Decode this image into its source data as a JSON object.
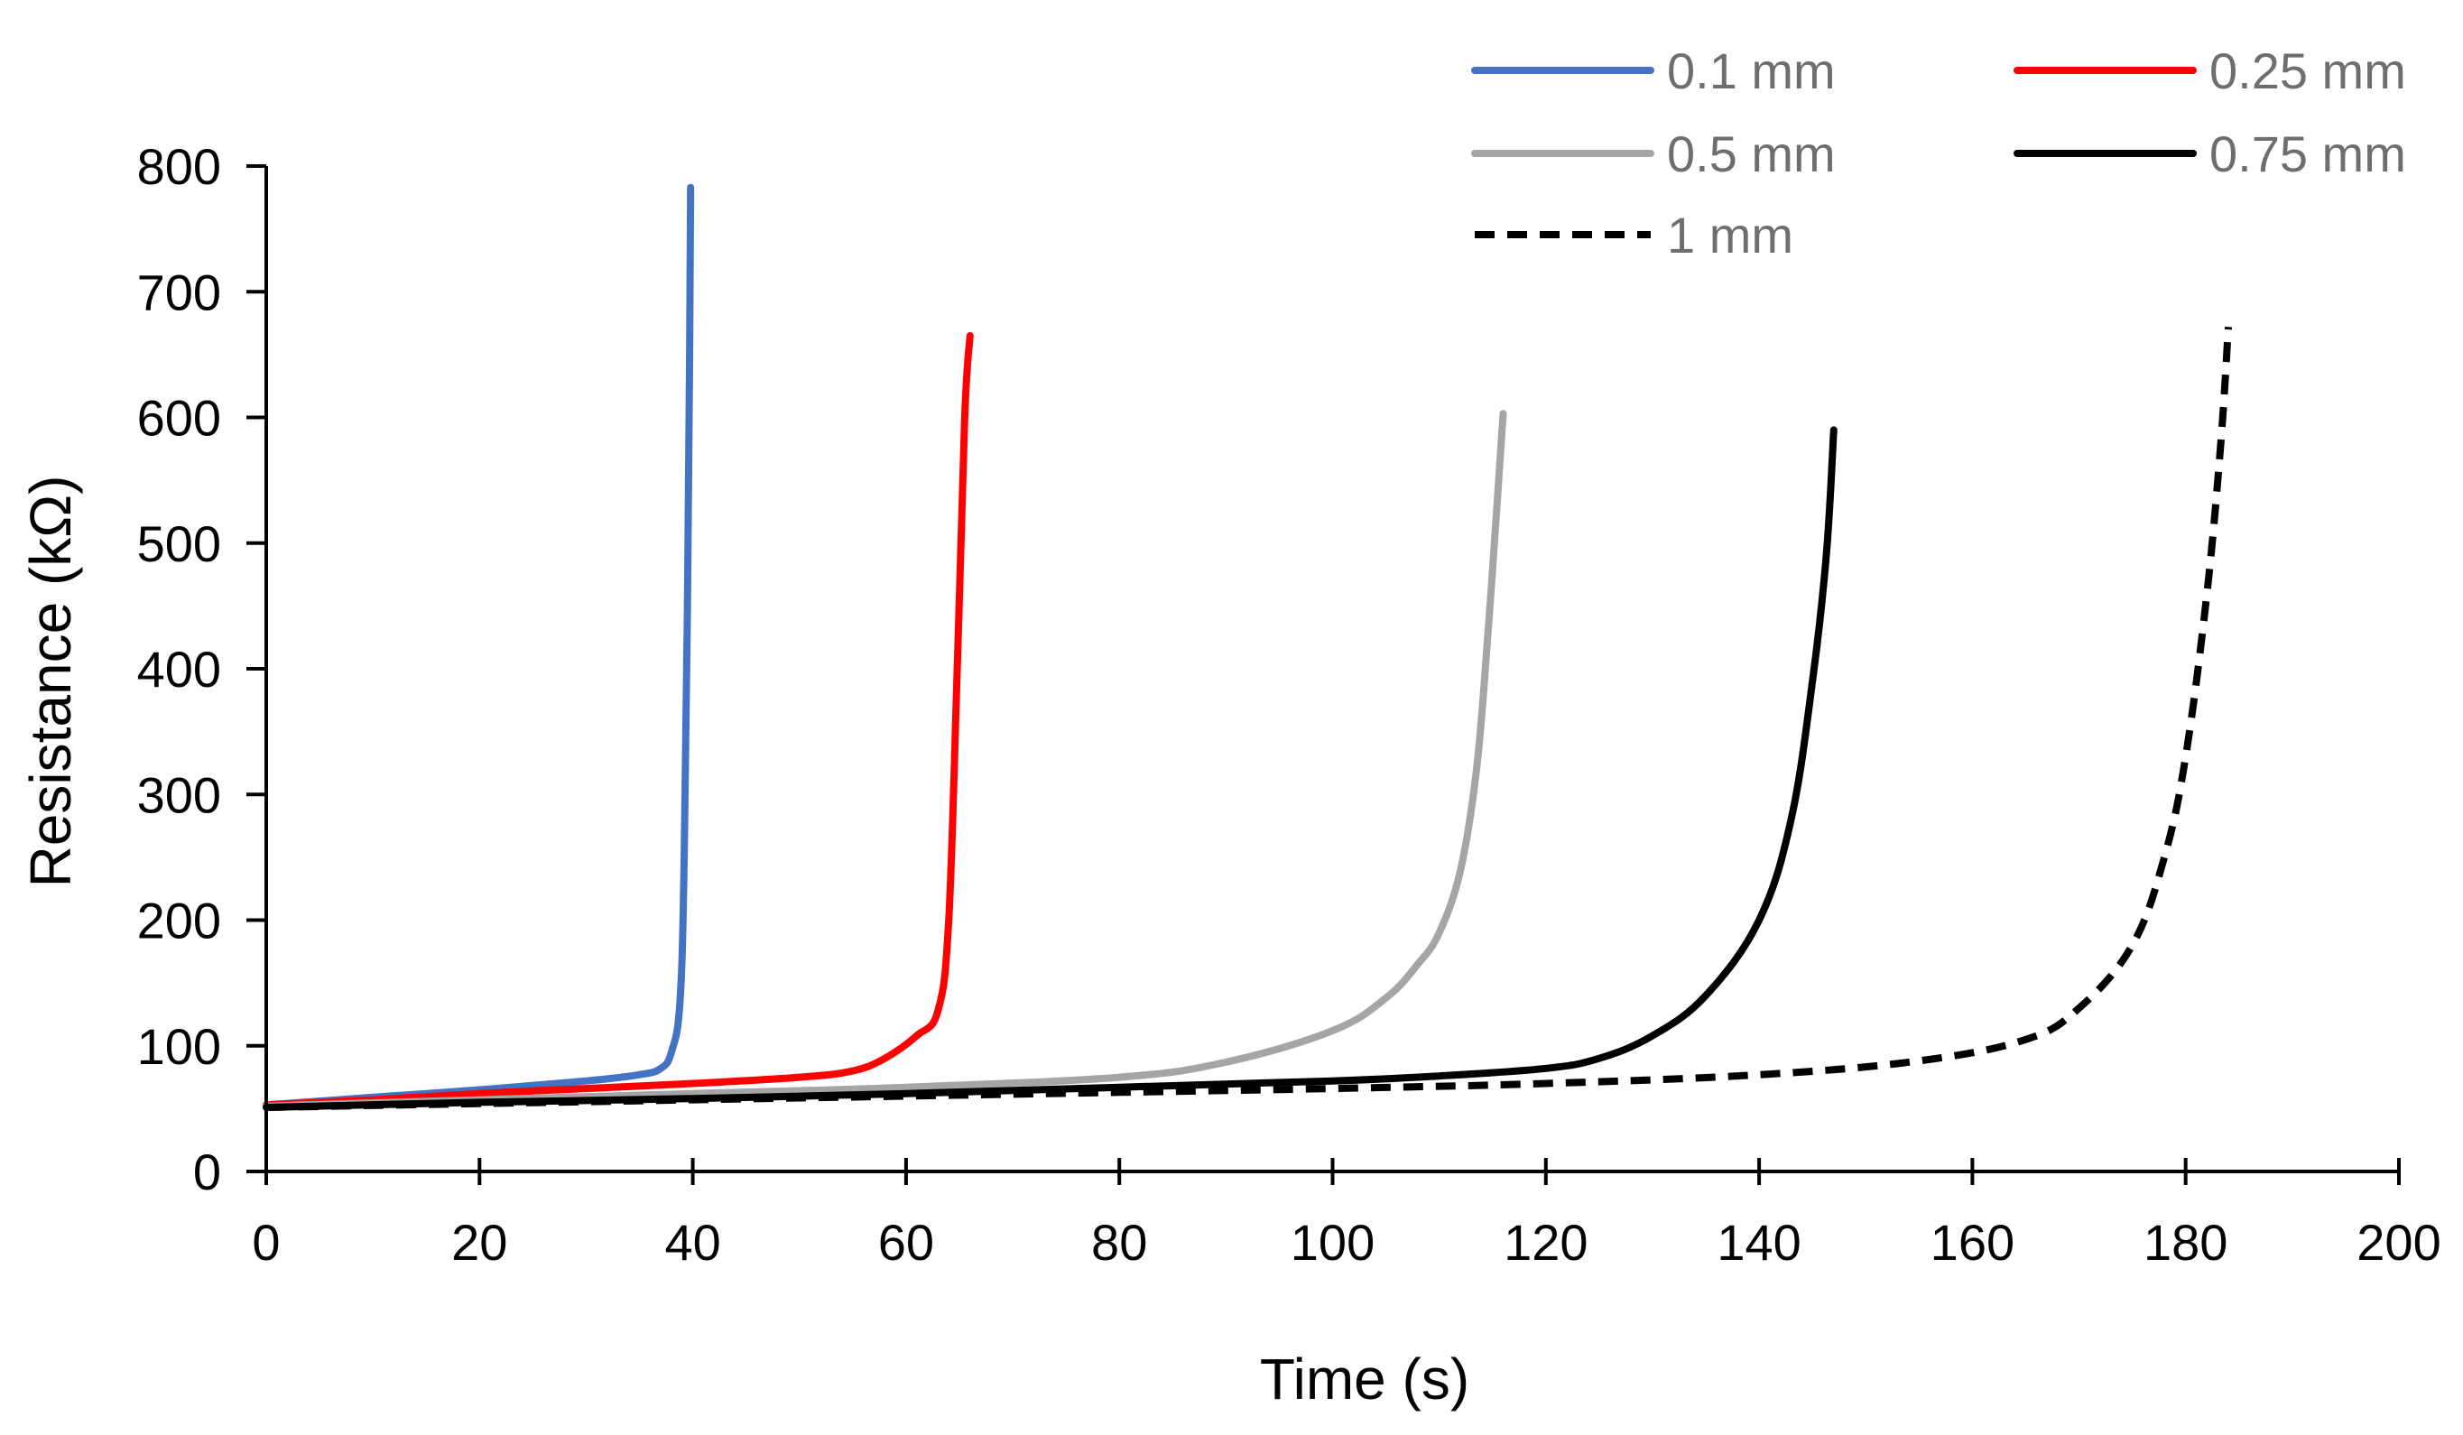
{
  "chart_data": {
    "type": "line",
    "title": "",
    "xlabel": "Time (s)",
    "ylabel": "Resistance (kΩ)",
    "xlim": [
      0,
      200
    ],
    "ylim": [
      0,
      800
    ],
    "xticks": [
      0,
      20,
      40,
      60,
      80,
      100,
      120,
      140,
      160,
      180,
      200
    ],
    "yticks": [
      0,
      100,
      200,
      300,
      400,
      500,
      600,
      700,
      800
    ],
    "xtick_labels": [
      "0",
      "20",
      "40",
      "60",
      "80",
      "100",
      "120",
      "140",
      "160",
      "180",
      "200"
    ],
    "ytick_labels": [
      "0",
      "100",
      "200",
      "300",
      "400",
      "500",
      "600",
      "700",
      "800"
    ],
    "grid": false,
    "legend_position": "top-right",
    "series": [
      {
        "name": "0.1 mm",
        "color": "#4472C4",
        "dash": "solid",
        "points": [
          [
            0,
            53
          ],
          [
            10,
            59
          ],
          [
            20,
            65
          ],
          [
            30,
            72
          ],
          [
            35,
            77
          ],
          [
            37,
            82
          ],
          [
            38,
            95
          ],
          [
            38.8,
            135
          ],
          [
            39.2,
            250
          ],
          [
            39.5,
            450
          ],
          [
            39.7,
            650
          ],
          [
            39.8,
            783
          ]
        ]
      },
      {
        "name": "0.25 mm",
        "color": "#FF0000",
        "dash": "solid",
        "points": [
          [
            0,
            53
          ],
          [
            10,
            57
          ],
          [
            20,
            62
          ],
          [
            30,
            66
          ],
          [
            40,
            70
          ],
          [
            50,
            75
          ],
          [
            55,
            80
          ],
          [
            58,
            90
          ],
          [
            61,
            108
          ],
          [
            63,
            128
          ],
          [
            64,
            200
          ],
          [
            64.8,
            400
          ],
          [
            65.5,
            600
          ],
          [
            66,
            665
          ]
        ]
      },
      {
        "name": "0.5 mm",
        "color": "#A5A5A5",
        "dash": "solid",
        "points": [
          [
            0,
            52
          ],
          [
            20,
            57
          ],
          [
            40,
            62
          ],
          [
            60,
            67
          ],
          [
            80,
            75
          ],
          [
            90,
            87
          ],
          [
            100,
            112
          ],
          [
            105,
            138
          ],
          [
            108,
            165
          ],
          [
            110,
            190
          ],
          [
            112,
            240
          ],
          [
            113.5,
            320
          ],
          [
            114.5,
            420
          ],
          [
            115.5,
            540
          ],
          [
            116,
            603
          ]
        ]
      },
      {
        "name": "0.75 mm",
        "color": "#000000",
        "dash": "solid",
        "points": [
          [
            0,
            51
          ],
          [
            20,
            55
          ],
          [
            40,
            58
          ],
          [
            60,
            62
          ],
          [
            80,
            67
          ],
          [
            100,
            72
          ],
          [
            110,
            76
          ],
          [
            120,
            82
          ],
          [
            125,
            90
          ],
          [
            130,
            108
          ],
          [
            135,
            140
          ],
          [
            140,
            200
          ],
          [
            143,
            280
          ],
          [
            145,
            390
          ],
          [
            146.3,
            490
          ],
          [
            147,
            590
          ]
        ]
      },
      {
        "name": "1 mm",
        "color": "#000000",
        "dash": "dashed",
        "points": [
          [
            0,
            51
          ],
          [
            20,
            54
          ],
          [
            40,
            57
          ],
          [
            60,
            60
          ],
          [
            80,
            63
          ],
          [
            100,
            66
          ],
          [
            120,
            70
          ],
          [
            140,
            77
          ],
          [
            155,
            88
          ],
          [
            165,
            105
          ],
          [
            170,
            130
          ],
          [
            175,
            180
          ],
          [
            178,
            250
          ],
          [
            180,
            330
          ],
          [
            182,
            460
          ],
          [
            183.3,
            580
          ],
          [
            184,
            672
          ]
        ]
      }
    ]
  }
}
